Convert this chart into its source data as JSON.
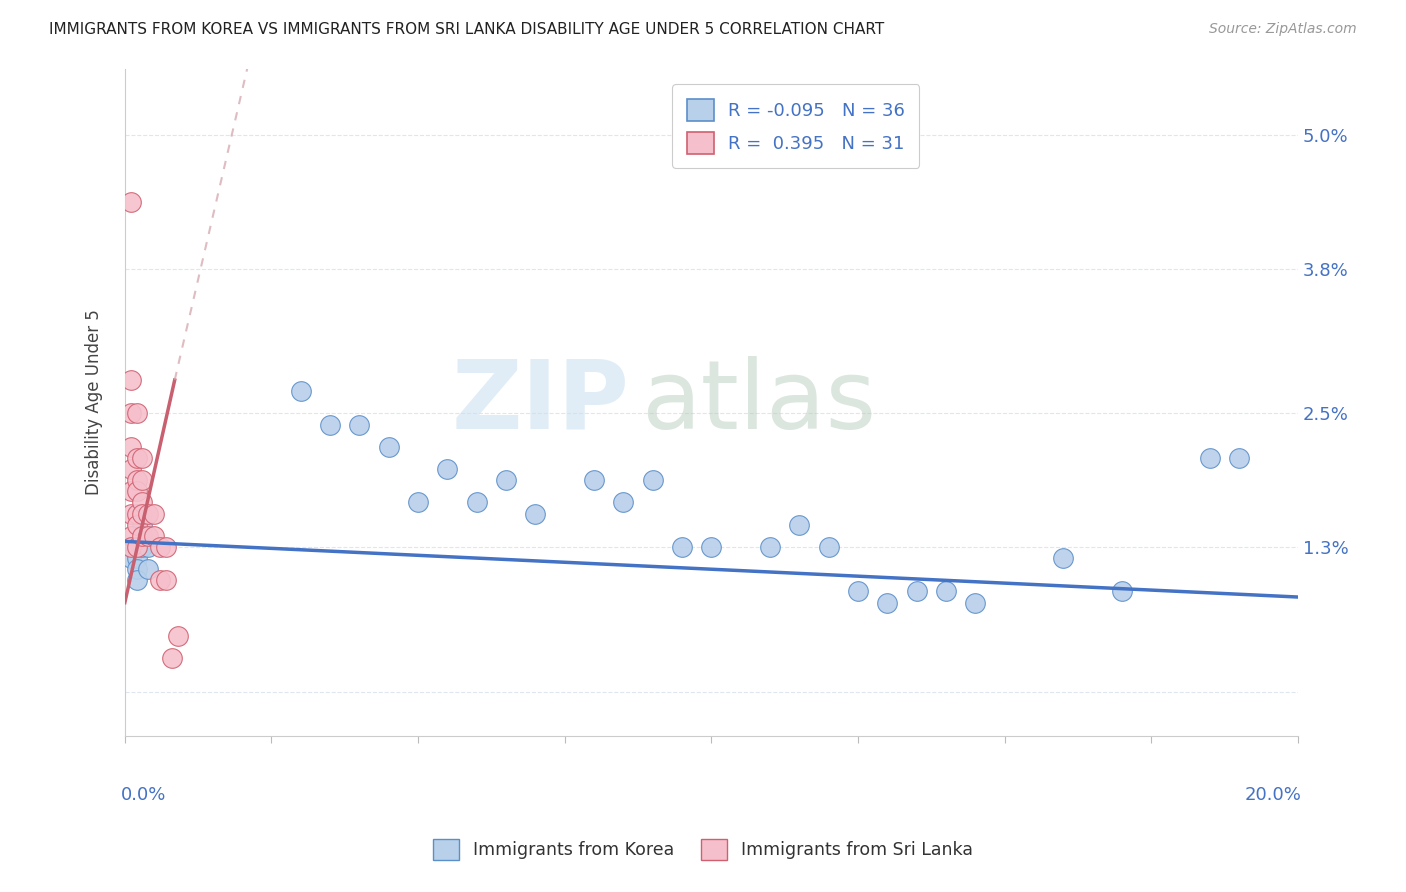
{
  "title": "IMMIGRANTS FROM KOREA VS IMMIGRANTS FROM SRI LANKA DISABILITY AGE UNDER 5 CORRELATION CHART",
  "source": "Source: ZipAtlas.com",
  "ylabel": "Disability Age Under 5",
  "yticks": [
    0.0,
    0.013,
    0.025,
    0.038,
    0.05
  ],
  "ytick_labels": [
    "",
    "1.3%",
    "2.5%",
    "3.8%",
    "5.0%"
  ],
  "xlim": [
    0.0,
    0.2
  ],
  "ylim": [
    -0.004,
    0.056
  ],
  "legend_korea_r": "R = -0.095",
  "legend_korea_n": "N = 36",
  "legend_srilanka_r": "R =  0.395",
  "legend_srilanka_n": "N = 31",
  "color_korea_fill": "#b8d0ea",
  "color_korea_edge": "#5b8fc9",
  "color_srilanka_fill": "#f5c0cc",
  "color_srilanka_edge": "#d06070",
  "color_korea_line": "#4472c4",
  "color_srilanka_line": "#c86070",
  "watermark_zip": "ZIP",
  "watermark_atlas": "atlas",
  "korea_x": [
    0.001,
    0.001,
    0.002,
    0.002,
    0.002,
    0.002,
    0.003,
    0.003,
    0.004,
    0.004,
    0.03,
    0.035,
    0.04,
    0.045,
    0.05,
    0.055,
    0.06,
    0.065,
    0.07,
    0.08,
    0.085,
    0.09,
    0.095,
    0.1,
    0.11,
    0.115,
    0.12,
    0.125,
    0.13,
    0.135,
    0.14,
    0.145,
    0.16,
    0.17,
    0.185,
    0.19
  ],
  "korea_y": [
    0.013,
    0.012,
    0.013,
    0.012,
    0.011,
    0.01,
    0.015,
    0.013,
    0.013,
    0.011,
    0.027,
    0.024,
    0.024,
    0.022,
    0.017,
    0.02,
    0.017,
    0.019,
    0.016,
    0.019,
    0.017,
    0.019,
    0.013,
    0.013,
    0.013,
    0.015,
    0.013,
    0.009,
    0.008,
    0.009,
    0.009,
    0.008,
    0.012,
    0.009,
    0.021,
    0.021
  ],
  "srilanka_x": [
    0.001,
    0.001,
    0.001,
    0.001,
    0.001,
    0.001,
    0.001,
    0.001,
    0.001,
    0.002,
    0.002,
    0.002,
    0.002,
    0.002,
    0.002,
    0.002,
    0.003,
    0.003,
    0.003,
    0.003,
    0.003,
    0.004,
    0.004,
    0.005,
    0.005,
    0.006,
    0.006,
    0.007,
    0.007,
    0.008,
    0.009
  ],
  "srilanka_y": [
    0.044,
    0.028,
    0.025,
    0.022,
    0.02,
    0.018,
    0.016,
    0.014,
    0.013,
    0.025,
    0.021,
    0.019,
    0.018,
    0.016,
    0.015,
    0.013,
    0.021,
    0.019,
    0.017,
    0.016,
    0.014,
    0.016,
    0.014,
    0.016,
    0.014,
    0.013,
    0.01,
    0.013,
    0.01,
    0.003,
    0.005
  ],
  "background_color": "#ffffff",
  "grid_color": "#e0e6f0"
}
